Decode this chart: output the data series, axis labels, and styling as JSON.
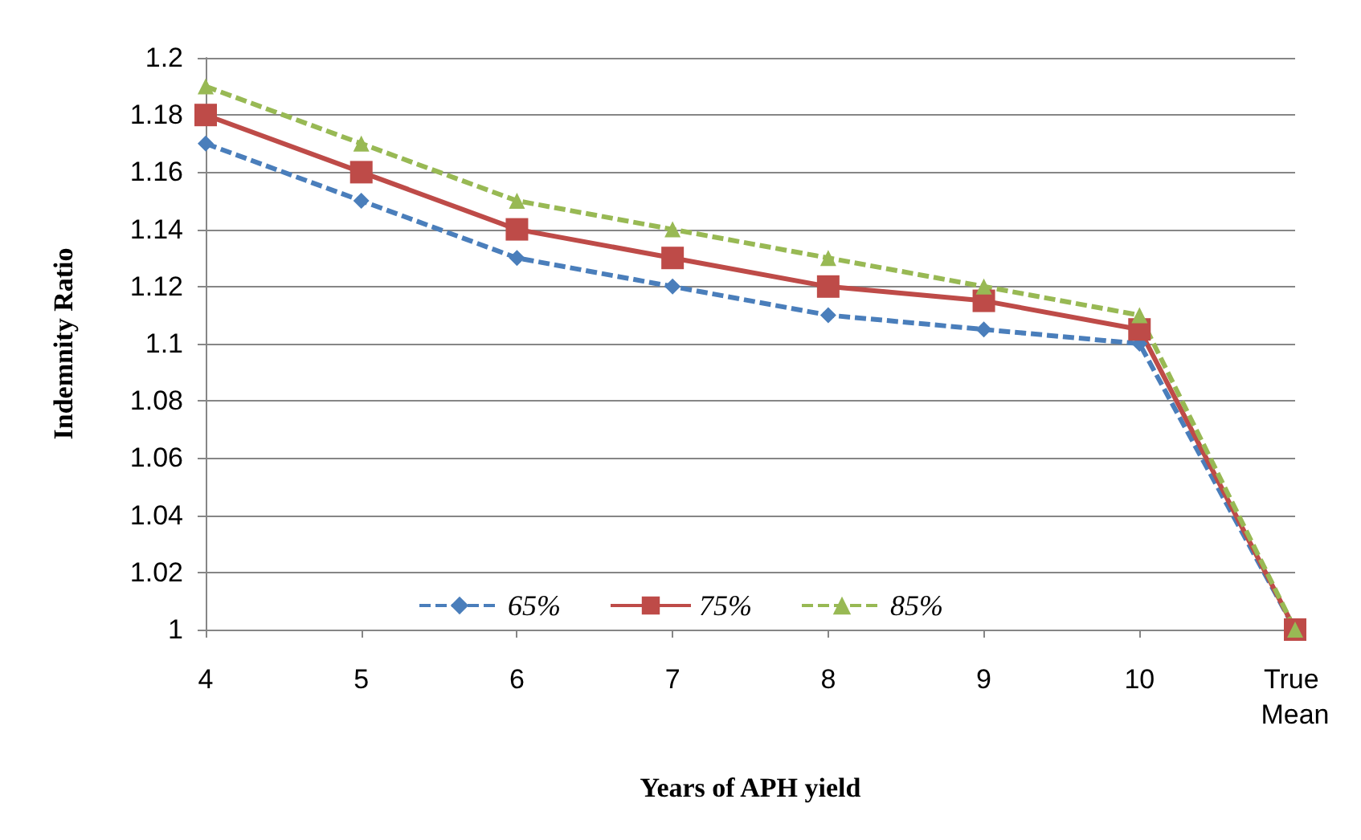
{
  "chart_data": {
    "type": "line",
    "xlabel": "Years of APH yield",
    "ylabel": "Indemnity Ratio",
    "categories": [
      "4",
      "5",
      "6",
      "7",
      "8",
      "9",
      "10",
      "True Mean"
    ],
    "series": [
      {
        "name": "65%",
        "color": "#4a7ebb",
        "marker": "diamond",
        "line_style": "dashed",
        "values": [
          1.17,
          1.15,
          1.13,
          1.12,
          1.11,
          1.105,
          1.1,
          1.0
        ]
      },
      {
        "name": "75%",
        "color": "#be4b48",
        "marker": "square",
        "line_style": "solid",
        "values": [
          1.18,
          1.16,
          1.14,
          1.13,
          1.12,
          1.115,
          1.105,
          1.0
        ]
      },
      {
        "name": "85%",
        "color": "#98b954",
        "marker": "triangle",
        "line_style": "dashed",
        "values": [
          1.19,
          1.17,
          1.15,
          1.14,
          1.13,
          1.12,
          1.11,
          1.0
        ]
      }
    ],
    "ylim": [
      1,
      1.2
    ],
    "yticks": [
      1,
      1.02,
      1.04,
      1.06,
      1.08,
      1.1,
      1.12,
      1.14,
      1.16,
      1.18,
      1.2
    ],
    "grid": "y",
    "legend": "bottom"
  }
}
